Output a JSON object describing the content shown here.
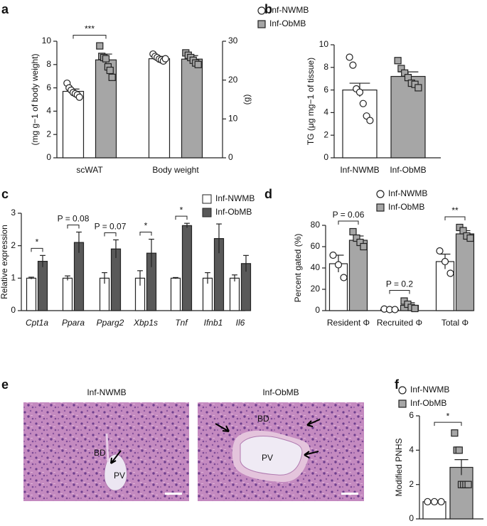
{
  "chart_data": [
    {
      "panel": "a",
      "type": "bar",
      "categories": [
        "scWAT",
        "Body weight"
      ],
      "category_axis": [
        "y",
        "y2"
      ],
      "series": [
        {
          "name": "Inf-NWMB",
          "color": "#ffffff",
          "marker": "circle",
          "values": [
            5.7,
            25.5
          ],
          "errors": [
            0.2,
            0.6
          ],
          "points": [
            [
              6.4,
              6.0,
              5.8,
              5.6,
              5.5,
              5.4,
              5.2
            ],
            [
              26.7,
              26.1,
              25.8,
              25.4,
              25.2,
              24.9,
              25.5
            ]
          ]
        },
        {
          "name": "Inf-ObMB",
          "color": "#a6a6a6",
          "marker": "square",
          "values": [
            8.4,
            25.4
          ],
          "errors": [
            0.5,
            0.9
          ],
          "points": [
            [
              9.6,
              8.7,
              8.6,
              8.5,
              7.8,
              7.5,
              6.9
            ],
            [
              27.0,
              26.4,
              25.8,
              25.1,
              24.4,
              24.0
            ]
          ]
        }
      ],
      "ylim": [
        0,
        10
      ],
      "yticks": [
        0,
        2,
        4,
        6,
        8,
        10
      ],
      "ylabel": "(mg g−1 of body weight)",
      "y2lim": [
        0,
        30
      ],
      "y2ticks": [
        0,
        10,
        20,
        30
      ],
      "y2label": "(g)",
      "legend": "point",
      "annotations": [
        {
          "category": 0,
          "text": "***"
        }
      ]
    },
    {
      "panel": "b",
      "type": "bar",
      "categories": [
        "Inf-NWMB",
        "Inf-ObMB"
      ],
      "series": [
        {
          "colors": [
            "#ffffff",
            "#a6a6a6"
          ],
          "markers": [
            "circle",
            "square"
          ],
          "values": [
            6.0,
            7.2
          ],
          "errors": [
            0.6,
            0.4
          ],
          "points": [
            [
              8.9,
              8.2,
              6.1,
              5.8,
              4.8,
              3.7,
              3.3
            ],
            [
              8.6,
              7.9,
              7.5,
              7.1,
              6.6,
              6.5,
              6.2
            ]
          ]
        }
      ],
      "ylim": [
        0,
        10
      ],
      "yticks": [
        0,
        2,
        4,
        6,
        8,
        10
      ],
      "ylabel": "TG (μg mg−1 of tissue)"
    },
    {
      "panel": "c",
      "type": "bar",
      "categories": [
        "Cpt1a",
        "Ppara",
        "Pparg2",
        "Xbp1s",
        "Tnf",
        "Ifnb1",
        "Il6"
      ],
      "italic_categories": true,
      "series": [
        {
          "name": "Inf-NWMB",
          "color": "#ffffff",
          "values": [
            1.0,
            1.0,
            1.0,
            1.0,
            1.0,
            1.0,
            1.0
          ],
          "errors": [
            0.03,
            0.07,
            0.17,
            0.23,
            0.02,
            0.17,
            0.1
          ]
        },
        {
          "name": "Inf-ObMB",
          "color": "#595959",
          "values": [
            1.52,
            2.1,
            1.9,
            1.77,
            2.62,
            2.22,
            1.45
          ],
          "errors": [
            0.18,
            0.32,
            0.28,
            0.43,
            0.07,
            0.45,
            0.25
          ]
        }
      ],
      "ylim": [
        0,
        3
      ],
      "yticks": [
        0,
        1,
        2,
        3
      ],
      "ylabel": "Relative expression",
      "legend": "box",
      "annotations": [
        {
          "category": 0,
          "text": "*"
        },
        {
          "category": 1,
          "text": "P = 0.08"
        },
        {
          "category": 2,
          "text": "P = 0.07"
        },
        {
          "category": 3,
          "text": "*"
        },
        {
          "category": 4,
          "text": "*"
        }
      ]
    },
    {
      "panel": "d",
      "type": "bar",
      "categories": [
        "Resident Φ",
        "Recruited Φ",
        "Total Φ"
      ],
      "series": [
        {
          "name": "Inf-NWMB",
          "color": "#ffffff",
          "marker": "circle",
          "values": [
            44,
            1,
            46
          ],
          "errors": [
            8,
            0.5,
            7
          ],
          "points": [
            [
              52,
              43,
              31
            ],
            [
              1.5,
              1,
              1
            ],
            [
              56,
              46,
              35
            ]
          ]
        },
        {
          "name": "Inf-ObMB",
          "color": "#a6a6a6",
          "marker": "square",
          "values": [
            66,
            5,
            72
          ],
          "errors": [
            4,
            2.5,
            3
          ],
          "points": [
            [
              74,
              68,
              64,
              60
            ],
            [
              9,
              6,
              3,
              2
            ],
            [
              78,
              75,
              70,
              68
            ]
          ]
        }
      ],
      "ylim": [
        0,
        80
      ],
      "yticks": [
        0,
        20,
        40,
        60,
        80
      ],
      "ylabel": "Percent gated (%)",
      "legend": "point",
      "annotations": [
        {
          "category": 0,
          "text": "P = 0.06"
        },
        {
          "category": 1,
          "text": "P = 0.2"
        },
        {
          "category": 2,
          "text": "**"
        }
      ]
    },
    {
      "panel": "f",
      "type": "bar",
      "categories": [
        null
      ],
      "series": [
        {
          "name": "Inf-NWMB",
          "color": "#ffffff",
          "marker": "circle",
          "values": [
            1.0
          ],
          "points": [
            [
              1,
              1,
              1
            ]
          ]
        },
        {
          "name": "Inf-ObMB",
          "color": "#a6a6a6",
          "marker": "square",
          "values": [
            3.0
          ],
          "errors": [
            0.45
          ],
          "points": [
            [
              5,
              4,
              4,
              2,
              2,
              2,
              2
            ]
          ]
        }
      ],
      "ylim": [
        0,
        6
      ],
      "yticks": [
        0,
        2,
        4,
        6
      ],
      "ylabel": "Modified PNHS",
      "legend": "point",
      "annotations": [
        {
          "category": 0,
          "text": "*"
        }
      ]
    }
  ],
  "micrographs": {
    "panel": "e",
    "images": [
      {
        "title": "Inf-NWMB",
        "labels": [
          "BD",
          "PV"
        ]
      },
      {
        "title": "Inf-ObMB",
        "labels": [
          "BD",
          "PV"
        ]
      }
    ]
  }
}
